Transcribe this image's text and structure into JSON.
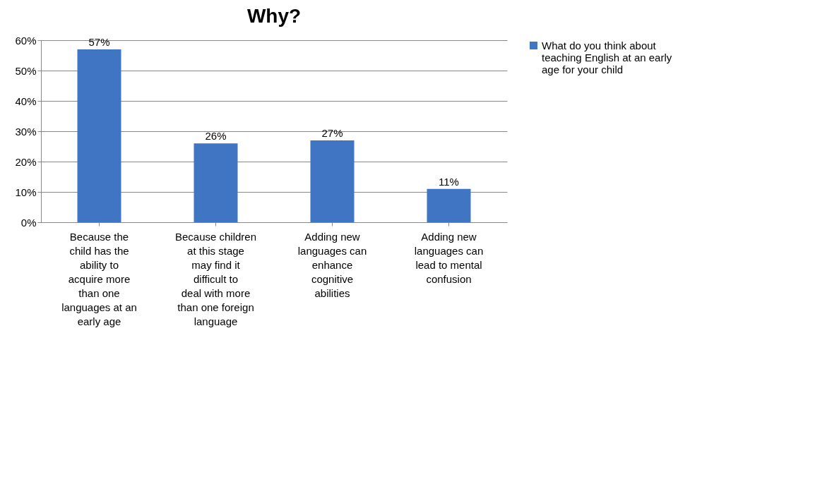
{
  "chart_data": {
    "type": "bar",
    "title": "Why?",
    "categories": [
      "Because the child has the ability to acquire more than one languages at an early age",
      "Because children at this stage may find it difficult to deal with more than one foreign language",
      "Adding new languages can enhance cognitive abilities",
      "Adding new languages can lead to mental confusion"
    ],
    "series": [
      {
        "name": "What do you think about teaching English at an early age for your child",
        "color": "#3f75c2",
        "values": [
          57,
          26,
          27,
          11
        ],
        "value_labels": [
          "57%",
          "26%",
          "27%",
          "11%"
        ]
      }
    ],
    "ylim": [
      0,
      60
    ],
    "yticks": [
      {
        "value": 0,
        "label": "0%"
      },
      {
        "value": 10,
        "label": "10%"
      },
      {
        "value": 20,
        "label": "20%"
      },
      {
        "value": 30,
        "label": "30%"
      },
      {
        "value": 40,
        "label": "40%"
      },
      {
        "value": 50,
        "label": "50%"
      },
      {
        "value": 60,
        "label": "60%"
      }
    ],
    "grid": "y",
    "legend": "right"
  }
}
